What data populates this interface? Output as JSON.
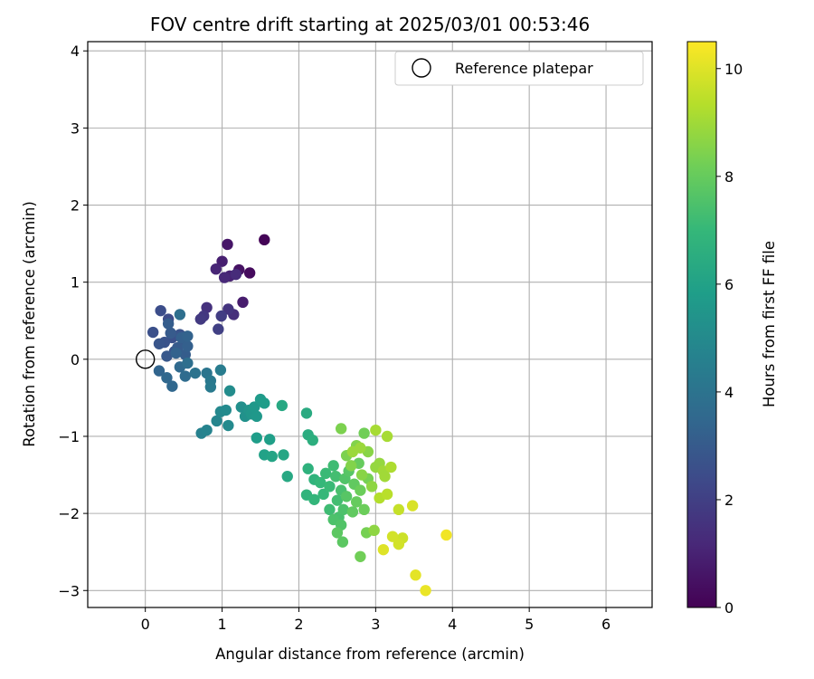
{
  "chart_data": {
    "type": "scatter",
    "title": "FOV centre drift starting at 2025/03/01 00:53:46",
    "xlabel": "Angular distance from reference (arcmin)",
    "ylabel": "Rotation from reference (arcmin)",
    "xlim": [
      -0.75,
      6.6
    ],
    "ylim": [
      -3.22,
      4.12
    ],
    "xticks": [
      0,
      1,
      2,
      3,
      4,
      5,
      6
    ],
    "yticks": [
      -3,
      -2,
      -1,
      0,
      1,
      2,
      3,
      4
    ],
    "grid": true,
    "legend": {
      "placement": "top-right",
      "label": "Reference platepar"
    },
    "reference": {
      "x": 0,
      "y": 0
    },
    "colorbar": {
      "label": "Hours from first FF file",
      "range": [
        0,
        10.5
      ],
      "ticks": [
        0,
        2,
        4,
        6,
        8,
        10
      ],
      "colormap": "viridis",
      "stops": [
        "#440154",
        "#482878",
        "#3e4989",
        "#31688e",
        "#26828e",
        "#1f9e89",
        "#35b779",
        "#6ece58",
        "#b5de2b",
        "#fde725"
      ]
    },
    "points": [
      [
        1.55,
        1.55,
        0.1
      ],
      [
        1.36,
        1.12,
        0.3
      ],
      [
        1.22,
        1.16,
        0.5
      ],
      [
        1.07,
        1.49,
        0.6
      ],
      [
        1.27,
        0.74,
        0.8
      ],
      [
        1.0,
        1.27,
        0.9
      ],
      [
        1.1,
        1.08,
        1.0
      ],
      [
        0.92,
        1.17,
        1.1
      ],
      [
        1.03,
        1.06,
        1.2
      ],
      [
        1.18,
        1.1,
        1.3
      ],
      [
        1.15,
        0.58,
        1.4
      ],
      [
        0.8,
        0.67,
        1.5
      ],
      [
        1.08,
        0.65,
        1.6
      ],
      [
        0.76,
        0.56,
        1.7
      ],
      [
        0.72,
        0.52,
        1.8
      ],
      [
        0.99,
        0.56,
        1.9
      ],
      [
        0.95,
        0.39,
        2.0
      ],
      [
        0.3,
        0.52,
        2.4
      ],
      [
        0.2,
        0.63,
        2.5
      ],
      [
        0.1,
        0.35,
        2.6
      ],
      [
        0.35,
        0.28,
        2.6
      ],
      [
        0.25,
        0.22,
        2.7
      ],
      [
        0.45,
        0.32,
        2.7
      ],
      [
        0.18,
        0.2,
        2.8
      ],
      [
        0.38,
        0.1,
        2.8
      ],
      [
        0.28,
        0.04,
        2.9
      ],
      [
        0.5,
        0.22,
        2.9
      ],
      [
        0.42,
        0.15,
        3.0
      ],
      [
        0.33,
        0.34,
        3.0
      ],
      [
        0.52,
        0.06,
        3.1
      ],
      [
        0.3,
        0.46,
        3.1
      ],
      [
        0.47,
        0.28,
        3.2
      ],
      [
        0.55,
        0.17,
        3.2
      ],
      [
        0.55,
        0.3,
        3.3
      ],
      [
        0.4,
        0.08,
        3.3
      ],
      [
        0.18,
        -0.15,
        3.4
      ],
      [
        0.28,
        -0.24,
        3.5
      ],
      [
        0.35,
        -0.35,
        3.5
      ],
      [
        0.45,
        -0.1,
        3.6
      ],
      [
        0.52,
        -0.22,
        3.7
      ],
      [
        0.55,
        -0.05,
        3.8
      ],
      [
        0.45,
        0.58,
        3.8
      ],
      [
        0.65,
        -0.18,
        4.0
      ],
      [
        0.8,
        -0.18,
        4.1
      ],
      [
        0.85,
        -0.28,
        4.2
      ],
      [
        0.85,
        -0.36,
        4.3
      ],
      [
        0.98,
        -0.14,
        4.4
      ],
      [
        0.73,
        -0.96,
        4.6
      ],
      [
        0.8,
        -0.92,
        4.7
      ],
      [
        0.93,
        -0.8,
        4.8
      ],
      [
        0.98,
        -0.68,
        4.9
      ],
      [
        1.05,
        -0.66,
        5.0
      ],
      [
        1.08,
        -0.86,
        5.0
      ],
      [
        1.1,
        -0.41,
        5.1
      ],
      [
        1.25,
        -0.62,
        5.2
      ],
      [
        1.3,
        -0.74,
        5.3
      ],
      [
        1.35,
        -0.66,
        5.4
      ],
      [
        1.38,
        -0.71,
        5.5
      ],
      [
        1.42,
        -0.62,
        5.6
      ],
      [
        1.45,
        -0.74,
        5.6
      ],
      [
        1.5,
        -0.52,
        5.7
      ],
      [
        1.45,
        -1.02,
        5.8
      ],
      [
        1.55,
        -0.57,
        5.8
      ],
      [
        1.62,
        -1.04,
        5.9
      ],
      [
        1.55,
        -1.24,
        6.0
      ],
      [
        1.65,
        -1.26,
        6.1
      ],
      [
        1.8,
        -1.24,
        6.2
      ],
      [
        1.85,
        -1.52,
        6.3
      ],
      [
        1.78,
        -0.6,
        6.3
      ],
      [
        2.1,
        -0.7,
        6.4
      ],
      [
        2.12,
        -0.98,
        6.5
      ],
      [
        2.18,
        -1.05,
        6.6
      ],
      [
        2.12,
        -1.42,
        6.7
      ],
      [
        2.2,
        -1.56,
        6.8
      ],
      [
        2.1,
        -1.76,
        6.8
      ],
      [
        2.2,
        -1.82,
        6.9
      ],
      [
        2.28,
        -1.6,
        7.0
      ],
      [
        2.32,
        -1.75,
        7.0
      ],
      [
        2.35,
        -1.48,
        7.1
      ],
      [
        2.4,
        -1.65,
        7.1
      ],
      [
        2.45,
        -1.38,
        7.2
      ],
      [
        2.4,
        -1.95,
        7.2
      ],
      [
        2.48,
        -1.52,
        7.3
      ],
      [
        2.5,
        -1.83,
        7.3
      ],
      [
        2.52,
        -2.05,
        7.4
      ],
      [
        2.55,
        -1.7,
        7.4
      ],
      [
        2.45,
        -2.08,
        7.5
      ],
      [
        2.58,
        -1.95,
        7.5
      ],
      [
        2.6,
        -1.55,
        7.6
      ],
      [
        2.55,
        -2.15,
        7.6
      ],
      [
        2.62,
        -1.78,
        7.7
      ],
      [
        2.65,
        -1.45,
        7.7
      ],
      [
        2.5,
        -2.25,
        7.8
      ],
      [
        2.57,
        -2.37,
        7.8
      ],
      [
        2.7,
        -1.98,
        7.9
      ],
      [
        2.72,
        -1.62,
        7.9
      ],
      [
        2.75,
        -1.85,
        8.0
      ],
      [
        2.78,
        -1.35,
        8.0
      ],
      [
        2.8,
        -1.7,
        8.1
      ],
      [
        2.85,
        -1.95,
        8.1
      ],
      [
        2.8,
        -2.56,
        8.2
      ],
      [
        2.85,
        -0.96,
        8.2
      ],
      [
        2.9,
        -1.55,
        8.3
      ],
      [
        2.88,
        -2.25,
        8.3
      ],
      [
        2.55,
        -0.9,
        8.4
      ],
      [
        2.62,
        -1.25,
        8.4
      ],
      [
        2.68,
        -1.38,
        8.5
      ],
      [
        2.75,
        -1.12,
        8.5
      ],
      [
        2.82,
        -1.5,
        8.6
      ],
      [
        2.9,
        -1.2,
        8.6
      ],
      [
        2.95,
        -1.65,
        8.7
      ],
      [
        2.98,
        -2.22,
        8.7
      ],
      [
        3.0,
        -1.4,
        8.8
      ],
      [
        3.05,
        -1.35,
        8.8
      ],
      [
        2.7,
        -1.2,
        8.9
      ],
      [
        2.8,
        -1.15,
        8.9
      ],
      [
        3.1,
        -1.45,
        9.0
      ],
      [
        3.12,
        -1.52,
        9.0
      ],
      [
        3.15,
        -1.0,
        9.1
      ],
      [
        3.0,
        -0.92,
        9.1
      ],
      [
        3.2,
        -1.4,
        9.2
      ],
      [
        3.05,
        -1.8,
        9.3
      ],
      [
        3.15,
        -1.75,
        9.4
      ],
      [
        3.3,
        -1.95,
        9.6
      ],
      [
        3.35,
        -2.32,
        9.7
      ],
      [
        3.3,
        -2.4,
        9.8
      ],
      [
        3.22,
        -2.3,
        9.8
      ],
      [
        3.48,
        -1.9,
        9.9
      ],
      [
        3.1,
        -2.47,
        10.0
      ],
      [
        3.52,
        -2.8,
        10.1
      ],
      [
        3.65,
        -3.0,
        10.2
      ],
      [
        3.92,
        -2.28,
        10.3
      ]
    ]
  }
}
